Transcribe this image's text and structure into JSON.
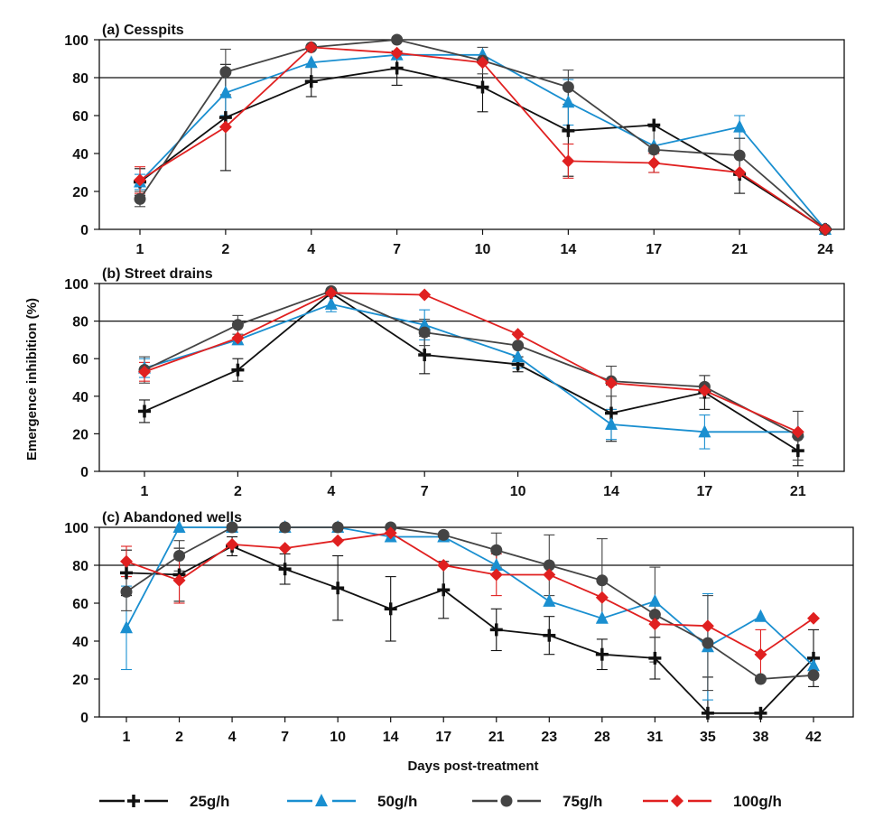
{
  "figure": {
    "ylabel": "Emergence inhibition (%)",
    "xlabel": "Days post-treatment",
    "reference_line": 80,
    "colors": {
      "25g/h": "#111111",
      "50g/h": "#1a8fd0",
      "75g/h": "#444444",
      "100g/h": "#e02020"
    }
  },
  "legend": [
    {
      "name": "25g/h",
      "marker": "plus",
      "color": "#111111"
    },
    {
      "name": "50g/h",
      "marker": "triangle",
      "color": "#1a8fd0"
    },
    {
      "name": "75g/h",
      "marker": "circle",
      "color": "#444444"
    },
    {
      "name": "100g/h",
      "marker": "diamond",
      "color": "#e02020"
    }
  ],
  "chart_data": [
    {
      "type": "line",
      "title": "(a) Cesspits",
      "xlabel": "",
      "ylabel": "Emergence inhibition (%)",
      "ylim": [
        0,
        100
      ],
      "yticks": [
        0,
        20,
        40,
        60,
        80,
        100
      ],
      "categories": [
        "1",
        "2",
        "4",
        "7",
        "10",
        "14",
        "17",
        "21",
        "24"
      ],
      "series": [
        {
          "name": "25g/h",
          "values": [
            25,
            59,
            78,
            85,
            75,
            52,
            55,
            29,
            0
          ],
          "err": [
            7,
            28,
            8,
            9,
            13,
            24,
            0,
            10,
            0
          ]
        },
        {
          "name": "50g/h",
          "values": [
            25,
            72,
            88,
            92,
            92,
            67,
            44,
            54,
            0
          ],
          "err": [
            4,
            12,
            0,
            0,
            0,
            12,
            0,
            6,
            0
          ]
        },
        {
          "name": "75g/h",
          "values": [
            16,
            83,
            96,
            100,
            89,
            75,
            42,
            39,
            0
          ],
          "err": [
            4,
            12,
            0,
            0,
            7,
            9,
            12,
            9,
            0
          ]
        },
        {
          "name": "100g/h",
          "values": [
            26,
            54,
            96,
            93,
            88,
            36,
            35,
            30,
            0
          ],
          "err": [
            7,
            0,
            0,
            0,
            0,
            9,
            5,
            0,
            0
          ]
        }
      ]
    },
    {
      "type": "line",
      "title": "(b) Street drains",
      "xlabel": "",
      "ylabel": "Emergence inhibition (%)",
      "ylim": [
        0,
        100
      ],
      "yticks": [
        0,
        20,
        40,
        60,
        80,
        100
      ],
      "categories": [
        "1",
        "2",
        "4",
        "7",
        "10",
        "14",
        "17",
        "21"
      ],
      "series": [
        {
          "name": "25g/h",
          "values": [
            32,
            54,
            95,
            62,
            57,
            31,
            42,
            11
          ],
          "err": [
            6,
            6,
            0,
            10,
            4,
            15,
            9,
            8
          ]
        },
        {
          "name": "50g/h",
          "values": [
            55,
            70,
            89,
            78,
            61,
            25,
            21,
            21
          ],
          "err": [
            5,
            0,
            4,
            8,
            6,
            8,
            9,
            0
          ]
        },
        {
          "name": "75g/h",
          "values": [
            54,
            78,
            96,
            74,
            67,
            48,
            45,
            19
          ],
          "err": [
            7,
            5,
            0,
            7,
            0,
            8,
            6,
            13
          ]
        },
        {
          "name": "100g/h",
          "values": [
            53,
            71,
            95,
            94,
            73,
            47,
            43,
            21
          ],
          "err": [
            5,
            0,
            0,
            0,
            0,
            0,
            0,
            0
          ]
        }
      ]
    },
    {
      "type": "line",
      "title": "(c) Abandoned wells",
      "xlabel": "Days post-treatment",
      "ylabel": "Emergence inhibition (%)",
      "ylim": [
        0,
        100
      ],
      "yticks": [
        0,
        20,
        40,
        60,
        80,
        100
      ],
      "categories": [
        "1",
        "2",
        "4",
        "7",
        "10",
        "14",
        "17",
        "21",
        "23",
        "28",
        "31",
        "35",
        "38",
        "42"
      ],
      "series": [
        {
          "name": "25g/h",
          "values": [
            76,
            75,
            90,
            78,
            68,
            57,
            67,
            46,
            43,
            33,
            31,
            2,
            2,
            31
          ],
          "err": [
            12,
            14,
            5,
            8,
            17,
            17,
            15,
            11,
            10,
            8,
            11,
            19,
            0,
            15
          ]
        },
        {
          "name": "50g/h",
          "values": [
            47,
            100,
            100,
            100,
            100,
            95,
            95,
            80,
            61,
            52,
            61,
            37,
            53,
            27
          ],
          "err": [
            22,
            0,
            0,
            0,
            0,
            0,
            0,
            0,
            0,
            0,
            0,
            28,
            0,
            0
          ]
        },
        {
          "name": "75g/h",
          "values": [
            66,
            85,
            100,
            100,
            100,
            100,
            96,
            88,
            80,
            72,
            54,
            39,
            20,
            22
          ],
          "err": [
            10,
            8,
            0,
            0,
            0,
            0,
            0,
            9,
            16,
            22,
            25,
            25,
            0,
            0
          ]
        },
        {
          "name": "100g/h",
          "values": [
            82,
            72,
            91,
            89,
            93,
            97,
            80,
            75,
            75,
            63,
            49,
            48,
            33,
            52
          ],
          "err": [
            8,
            12,
            0,
            0,
            0,
            0,
            0,
            11,
            0,
            0,
            0,
            0,
            13,
            0
          ]
        }
      ]
    }
  ]
}
